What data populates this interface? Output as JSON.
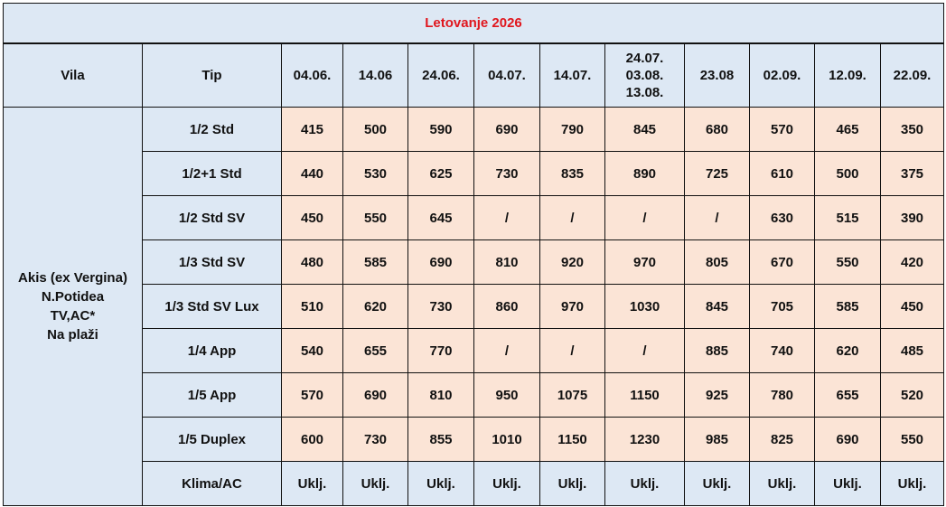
{
  "title": "Letovanje 2026",
  "headers": {
    "vila": "Vila",
    "tip": "Tip",
    "dates": [
      "04.06.",
      "14.06",
      "24.06.",
      "04.07.",
      "14.07.",
      "24.07.\n03.08.\n13.08.",
      "23.08",
      "02.09.",
      "12.09.",
      "22.09."
    ]
  },
  "vila": [
    "Akis (ex Vergina)",
    "N.Potidea",
    "TV,AC*",
    "Na plaži"
  ],
  "rows": [
    {
      "tip": "1/2 Std",
      "values": [
        "415",
        "500",
        "590",
        "690",
        "790",
        "845",
        "680",
        "570",
        "465",
        "350"
      ]
    },
    {
      "tip": "1/2+1 Std",
      "values": [
        "440",
        "530",
        "625",
        "730",
        "835",
        "890",
        "725",
        "610",
        "500",
        "375"
      ]
    },
    {
      "tip": "1/2 Std SV",
      "values": [
        "450",
        "550",
        "645",
        "/",
        "/",
        "/",
        "/",
        "630",
        "515",
        "390"
      ]
    },
    {
      "tip": "1/3 Std SV",
      "values": [
        "480",
        "585",
        "690",
        "810",
        "920",
        "970",
        "805",
        "670",
        "550",
        "420"
      ]
    },
    {
      "tip": "1/3 Std SV Lux",
      "values": [
        "510",
        "620",
        "730",
        "860",
        "970",
        "1030",
        "845",
        "705",
        "585",
        "450"
      ]
    },
    {
      "tip": "1/4 App",
      "values": [
        "540",
        "655",
        "770",
        "/",
        "/",
        "/",
        "885",
        "740",
        "620",
        "485"
      ]
    },
    {
      "tip": "1/5 App",
      "values": [
        "570",
        "690",
        "810",
        "950",
        "1075",
        "1150",
        "925",
        "780",
        "655",
        "520"
      ]
    },
    {
      "tip": "1/5 Duplex",
      "values": [
        "600",
        "730",
        "855",
        "1010",
        "1150",
        "1230",
        "985",
        "825",
        "690",
        "550"
      ]
    }
  ],
  "klima": {
    "tip": "Klima/AC",
    "values": [
      "Uklj.",
      "Uklj.",
      "Uklj.",
      "Uklj.",
      "Uklj.",
      "Uklj.",
      "Uklj.",
      "Uklj.",
      "Uklj.",
      "Uklj."
    ]
  },
  "colors": {
    "title": "#e0161d",
    "header_bg": "#dde8f4",
    "price_bg": "#fbe4d6"
  }
}
